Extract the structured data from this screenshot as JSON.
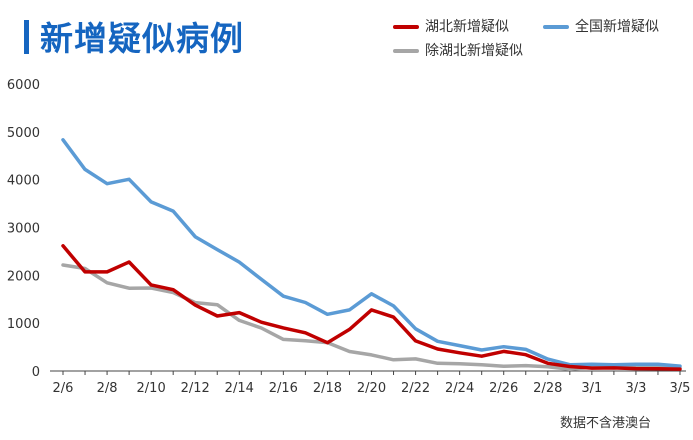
{
  "title": "新增疑似病例",
  "footnote": "数据不含港澳台",
  "chart_data": {
    "type": "line",
    "x": [
      "2/6",
      "2/7",
      "2/8",
      "2/9",
      "2/10",
      "2/11",
      "2/12",
      "2/13",
      "2/14",
      "2/15",
      "2/16",
      "2/17",
      "2/18",
      "2/19",
      "2/20",
      "2/21",
      "2/22",
      "2/23",
      "2/24",
      "2/25",
      "2/26",
      "2/27",
      "2/28",
      "2/29",
      "3/1",
      "3/2",
      "3/3",
      "3/4",
      "3/5"
    ],
    "x_tick_labels": [
      "2/6",
      "2/8",
      "2/10",
      "2/12",
      "2/14",
      "2/16",
      "2/18",
      "2/20",
      "2/22",
      "2/24",
      "2/26",
      "2/28",
      "3/1",
      "3/3",
      "3/5"
    ],
    "ylim": [
      0,
      6000
    ],
    "y_ticks": [
      0,
      1000,
      2000,
      3000,
      4000,
      5000,
      6000
    ],
    "grid": false,
    "legend_position": "top-right",
    "series": [
      {
        "name": "湖北新增疑似",
        "color": "#c00000",
        "values": [
          2618,
          2071,
          2072,
          2278,
          1800,
          1700,
          1377,
          1150,
          1220,
          1020,
          902,
          798,
          592,
          870,
          1277,
          1127,
          630,
          460,
          380,
          310,
          410,
          340,
          160,
          95,
          60,
          65,
          50,
          45,
          40
        ]
      },
      {
        "name": "全国新增疑似",
        "color": "#5b9bd5",
        "values": [
          4833,
          4214,
          3916,
          4008,
          3536,
          3342,
          2807,
          2537,
          2277,
          1918,
          1563,
          1432,
          1185,
          1277,
          1614,
          1361,
          882,
          620,
          530,
          439,
          508,
          452,
          248,
          132,
          141,
          129,
          143,
          143,
          102
        ]
      },
      {
        "name": "除湖北新增疑似",
        "color": "#a6a6a6",
        "values": [
          2215,
          2143,
          1844,
          1730,
          1736,
          1642,
          1430,
          1387,
          1057,
          898,
          661,
          634,
          593,
          407,
          337,
          234,
          252,
          160,
          150,
          129,
          98,
          112,
          88,
          37,
          81,
          64,
          93,
          98,
          62
        ]
      }
    ]
  }
}
